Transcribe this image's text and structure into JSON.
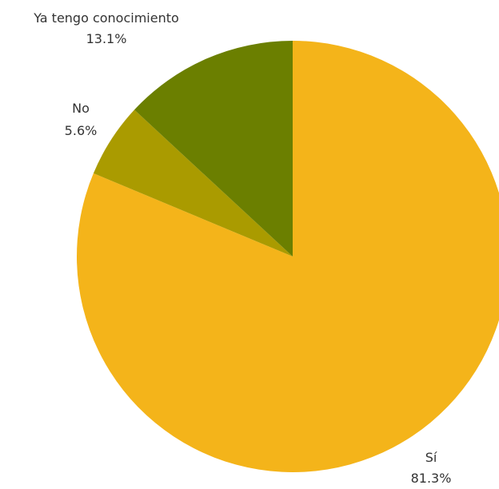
{
  "chart_data": {
    "type": "pie",
    "start_angle_deg": 0,
    "direction": "clockwise",
    "slices": [
      {
        "label": "Sí",
        "value": 81.3,
        "value_label": "81.3%",
        "color": "#F4B41A"
      },
      {
        "label": "No",
        "value": 5.6,
        "value_label": "5.6%",
        "color": "#AA9B00"
      },
      {
        "label": "Ya tengo conocimiento",
        "value": 13.1,
        "value_label": "13.1%",
        "color": "#6B7F00"
      }
    ]
  }
}
